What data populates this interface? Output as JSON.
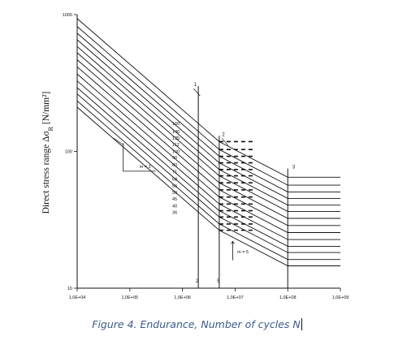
{
  "caption": "Figure 4. Endurance, Number of cycles N",
  "chart_data": {
    "type": "line",
    "ylabel": "Direct stress range Δσ",
    "ylabel_sub": "R",
    "ylabel_unit": " [N/mm²]",
    "x_scale": "log",
    "y_scale": "log",
    "xlim": [
      10000,
      1000000000
    ],
    "ylim": [
      10,
      1000
    ],
    "x_ticks": [
      {
        "value": 10000,
        "label": "1,0E+04"
      },
      {
        "value": 100000,
        "label": "1,0E+05"
      },
      {
        "value": 1000000,
        "label": "1,0E+06"
      },
      {
        "value": 10000000,
        "label": "1,0E+07"
      },
      {
        "value": 100000000,
        "label": "1,0E+08"
      },
      {
        "value": 1000000000,
        "label": "1,0E+09"
      }
    ],
    "y_ticks": [
      {
        "value": 10,
        "label": "10"
      },
      {
        "value": 100,
        "label": "100"
      },
      {
        "value": 1000,
        "label": "1000"
      }
    ],
    "detail_categories": [
      "160",
      "140",
      "125",
      "112",
      "100",
      "90",
      "80",
      "71",
      "63",
      "56",
      "50",
      "45",
      "40",
      "36"
    ],
    "detail_values": [
      160,
      140,
      125,
      112,
      100,
      90,
      80,
      71,
      63,
      56,
      50,
      45,
      40,
      36
    ],
    "n_reference": 2000000,
    "n_constant_amplitude": 5000000,
    "n_cutoff": 100000000,
    "slope_m1_label": "m = 3",
    "slope_m2_label": "m = 5",
    "markers": [
      {
        "label": "1",
        "x": 1750000,
        "y": 300,
        "kind": "arrow"
      },
      {
        "label": "2",
        "x": 6000000,
        "y": 130,
        "kind": "arrow"
      },
      {
        "label": "3",
        "x": 130000000,
        "y": 75,
        "kind": "text"
      },
      {
        "label": "2",
        "x": 1900000,
        "y": 11,
        "kind": "text"
      },
      {
        "label": "5",
        "x": 4800000,
        "y": 11,
        "kind": "text"
      }
    ]
  }
}
